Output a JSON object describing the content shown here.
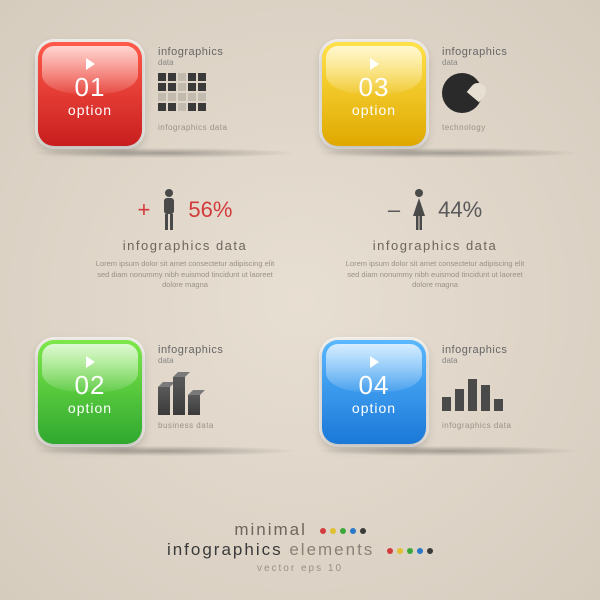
{
  "background_color": "#e3dacd",
  "tiles": [
    {
      "pos": "tl",
      "num": "01",
      "label": "option",
      "color_top": "#ff5a4a",
      "color_bot": "#c81e1e",
      "heading": "infographics",
      "sub": "data",
      "caption": "infographics data",
      "icon": "grid"
    },
    {
      "pos": "tr",
      "num": "03",
      "label": "option",
      "color_top": "#ffe24a",
      "color_bot": "#e0a800",
      "heading": "infographics",
      "sub": "data",
      "caption": "technology",
      "icon": "pie"
    },
    {
      "pos": "bl",
      "num": "02",
      "label": "option",
      "color_top": "#7ee84a",
      "color_bot": "#2fa82f",
      "heading": "infographics",
      "sub": "data",
      "caption": "business data",
      "icon": "bars3d"
    },
    {
      "pos": "br",
      "num": "04",
      "label": "option",
      "color_top": "#5ab8ff",
      "color_bot": "#1a78d8",
      "heading": "infographics",
      "sub": "data",
      "caption": "infographics data",
      "icon": "barchart"
    }
  ],
  "stats": {
    "male": {
      "sign": "+",
      "sign_color": "#d23b3b",
      "value": "56%",
      "value_color": "#d23b3b",
      "label": "infographics data",
      "lorem": "Lorem ipsum dolor sit amet consectetur adipiscing elit sed diam nonummy nibh euismod tincidunt ut laoreet dolore magna"
    },
    "female": {
      "sign": "–",
      "sign_color": "#5a5a5a",
      "value": "44%",
      "value_color": "#5a5a5a",
      "label": "infographics data",
      "lorem": "Lorem ipsum dolor sit amet consectetur adipiscing elit sed diam nonummy nibh euismod tincidunt ut laoreet dolore magna"
    }
  },
  "person_color": "#4a4a4a",
  "grid_pattern": [
    1,
    1,
    0,
    1,
    1,
    1,
    1,
    0,
    1,
    1,
    0,
    0,
    0,
    0,
    0,
    1,
    1,
    0,
    1,
    1
  ],
  "bars3d_heights": [
    28,
    38,
    20
  ],
  "barchart_heights": [
    14,
    22,
    32,
    26,
    12
  ],
  "footer": {
    "line1": "minimal",
    "line2a": "infographics",
    "line2b": " elements",
    "line3": "vector  eps 10",
    "dot_colors": [
      "#d23b3b",
      "#e0c030",
      "#3aa83a",
      "#2a78c8",
      "#3a3a3a"
    ]
  },
  "typography": {
    "thin_weight": 200,
    "body_color": "#6e665c"
  }
}
